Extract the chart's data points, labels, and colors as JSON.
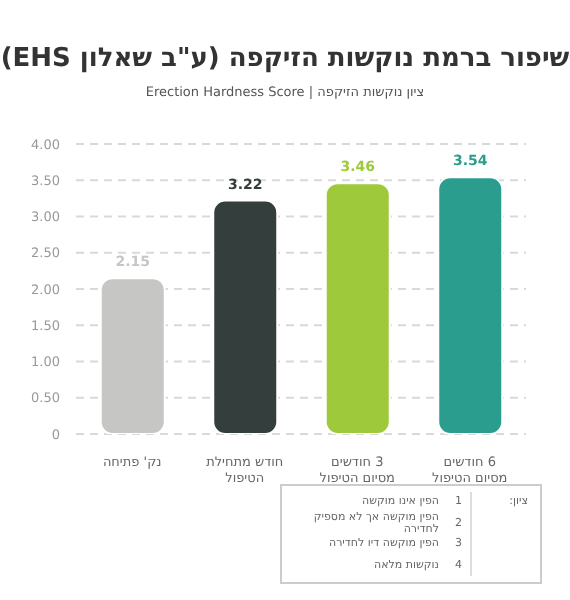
{
  "chart_data": {
    "type": "bar",
    "title": "שיפור ברמת נוקשות הזיקפה (ע\"ב שאלון EHS)",
    "subtitle": "ציון נוקשות הזיקפה | Erection Hardness Score",
    "categories": [
      "נק' פתיחה",
      "חודש מתחילת הטיפול",
      "3 חודשים מסיום הטיפול",
      "6 חודשים מסיום הטיפול"
    ],
    "values": [
      2.15,
      3.22,
      3.46,
      3.54
    ],
    "colors": [
      "#c6c7c5",
      "#343e3c",
      "#9ec93a",
      "#2a9d8f"
    ],
    "value_labels": [
      "2.15",
      "3.22",
      "3.46",
      "3.54"
    ],
    "ylim": [
      0,
      4
    ],
    "yticks": [
      0,
      {
        "value": 0.5,
        "label": "0.50"
      },
      {
        "value": 1,
        "label": "1.00"
      },
      {
        "value": 1.5,
        "label": "1.50"
      },
      {
        "value": 2,
        "label": "2.00"
      },
      {
        "value": 2.5,
        "label": "2.50"
      },
      {
        "value": 3,
        "label": "3.00"
      },
      {
        "value": 3.5,
        "label": "3.50"
      },
      {
        "value": 4,
        "label": "4.00"
      }
    ],
    "grid": "y",
    "annotations": [
      "ציון:",
      "1 הפין אינו מוקשה",
      "2 הפין מוקשה אך לא מספיק לחדירה",
      "3 הפין מוקשה דיו לחדירה",
      "4 נוקשות מלאה"
    ]
  }
}
